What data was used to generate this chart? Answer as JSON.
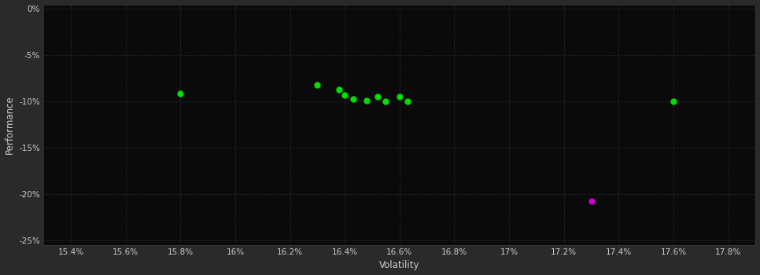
{
  "background_color": "#2a2a2a",
  "plot_bg_color": "#0a0a0a",
  "grid_color": "#3a3a3a",
  "text_color": "#cccccc",
  "xlabel": "Volatility",
  "ylabel": "Performance",
  "xlim": [
    0.153,
    0.179
  ],
  "ylim": [
    -0.255,
    0.005
  ],
  "xticks": [
    0.154,
    0.156,
    0.158,
    0.16,
    0.162,
    0.164,
    0.166,
    0.168,
    0.17,
    0.172,
    0.174,
    0.176,
    0.178
  ],
  "yticks": [
    0.0,
    -0.05,
    -0.1,
    -0.15,
    -0.2,
    -0.25
  ],
  "green_points": [
    [
      0.158,
      -0.091
    ],
    [
      0.163,
      -0.082
    ],
    [
      0.1638,
      -0.087
    ],
    [
      0.164,
      -0.093
    ],
    [
      0.1643,
      -0.097
    ],
    [
      0.1648,
      -0.099
    ],
    [
      0.1652,
      -0.095
    ],
    [
      0.1655,
      -0.1
    ],
    [
      0.166,
      -0.095
    ],
    [
      0.1663,
      -0.1
    ],
    [
      0.176,
      -0.1
    ]
  ],
  "magenta_points": [
    [
      0.173,
      -0.208
    ]
  ],
  "green_color": "#00dd00",
  "magenta_color": "#cc00cc",
  "marker_size": 5
}
